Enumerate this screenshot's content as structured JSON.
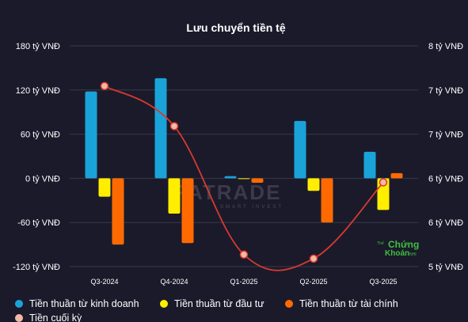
{
  "chart_data": {
    "type": "bar+line",
    "title": "Lưu chuyển tiền tệ",
    "categories": [
      "Q3-2024",
      "Q4-2024",
      "Q1-2025",
      "Q2-2025",
      "Q3-2025"
    ],
    "series": [
      {
        "name": "Tiền thuần từ kinh doanh",
        "type": "bar",
        "axis": "left",
        "color": "#1aa3d9",
        "values": [
          118,
          136,
          3,
          78,
          36
        ]
      },
      {
        "name": "Tiền thuần từ đầu tư",
        "type": "bar",
        "axis": "left",
        "color": "#ffee00",
        "values": [
          -25,
          -48,
          -1,
          -17,
          -43
        ]
      },
      {
        "name": "Tiền thuần từ tài chính",
        "type": "bar",
        "axis": "left",
        "color": "#ff6a00",
        "values": [
          -90,
          -88,
          -6,
          -60,
          7
        ]
      },
      {
        "name": "Tiền cuối kỳ",
        "type": "line",
        "axis": "right",
        "color": "#d83a2e",
        "values": [
          7.25,
          6.75,
          5.15,
          5.1,
          6.05
        ]
      }
    ],
    "left_axis": {
      "ticks": [
        "180 tỷ VNĐ",
        "120 tỷ VNĐ",
        "60 tỷ VNĐ",
        "0 tỷ VNĐ",
        "-60 tỷ VNĐ",
        "-120 tỷ VNĐ"
      ],
      "ylim": [
        -120,
        180
      ]
    },
    "right_axis": {
      "ticks": [
        "8 tỷ VNĐ",
        "7 tỷ VNĐ",
        "7 tỷ VNĐ",
        "6 tỷ VNĐ",
        "6 tỷ VNĐ",
        "5 tỷ VNĐ"
      ],
      "ylim": [
        5,
        7.75
      ]
    },
    "grid": true,
    "legend_position": "bottom"
  },
  "watermark": {
    "text": "FATRADE",
    "subtitle": "SMART INVEST"
  },
  "logo": {
    "line1": "Chứng",
    "line2": "Khoán",
    "small_top": "Thế",
    "small_right": "NHỊ"
  }
}
